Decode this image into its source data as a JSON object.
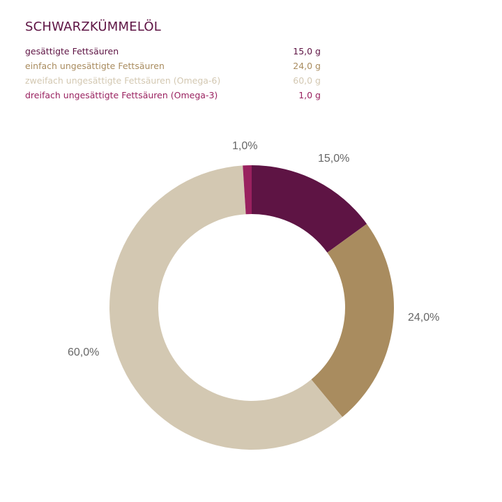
{
  "title": "SCHWARZKÜMMELÖL",
  "legend": [
    {
      "label": "gesättigte Fettsäuren",
      "value": "15,0 g",
      "color": "#5e1444"
    },
    {
      "label": "einfach ungesättigte Fettsäuren",
      "value": "24,0 g",
      "color": "#a98c5f"
    },
    {
      "label": "zweifach ungesättigte Fettsäuren (Omega-6)",
      "value": "60,0 g",
      "color": "#d3c8b2"
    },
    {
      "label": "dreifach ungesättigte Fettsäuren (Omega-3)",
      "value": "1,0 g",
      "color": "#99215f"
    }
  ],
  "chart_data": {
    "type": "pie",
    "variant": "donut",
    "title": "SCHWARZKÜMMELÖL",
    "categories": [
      "gesättigte Fettsäuren",
      "einfach ungesättigte Fettsäuren",
      "zweifach ungesättigte Fettsäuren (Omega-6)",
      "dreifach ungesättigte Fettsäuren (Omega-3)"
    ],
    "values": [
      15.0,
      24.0,
      60.0,
      1.0
    ],
    "unit": "g",
    "percent_labels": [
      "15,0%",
      "24,0%",
      "60,0%",
      "1,0%"
    ],
    "colors": [
      "#5e1444",
      "#a98c5f",
      "#d3c8b2",
      "#99215f"
    ],
    "legend_position": "top-left",
    "start_angle": "12 o'clock, clockwise"
  }
}
